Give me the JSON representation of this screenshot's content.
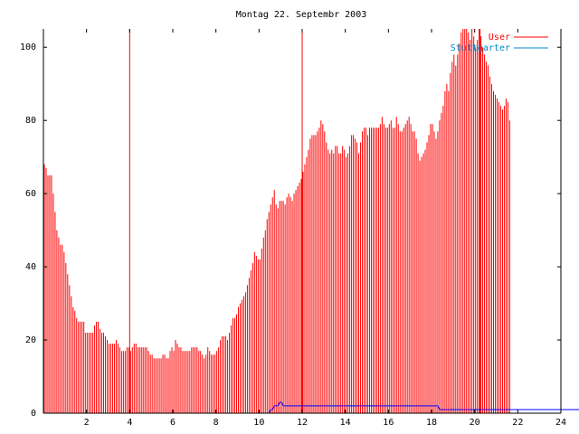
{
  "chart_data": {
    "type": "bar",
    "title": "Montag 22. Septembr 2003",
    "xlabel": "",
    "ylabel": "",
    "xlim": [
      0,
      24
    ],
    "ylim": [
      0,
      105
    ],
    "x_ticks": [
      "2",
      "4",
      "6",
      "8",
      "10",
      "12",
      "14",
      "16",
      "18",
      "20",
      "22",
      "24"
    ],
    "y_ticks": [
      "0",
      "20",
      "40",
      "60",
      "80",
      "100"
    ],
    "grid": false,
    "legend_position": "top-right",
    "sample_interval_hours": 0.08333,
    "colors": {
      "users": "#ff0000",
      "stuttgart": "#0000ff",
      "stuttgart_legend_text": "#0088cc",
      "axis": "#000000"
    },
    "series": [
      {
        "name": "User",
        "color": "#ff0000",
        "values": [
          68,
          67,
          65,
          65,
          65,
          60,
          55,
          50,
          48,
          46,
          46,
          44,
          41,
          38,
          35,
          32,
          29,
          28,
          26,
          25,
          25,
          25,
          25,
          22,
          22,
          22,
          22,
          22,
          24,
          25,
          25,
          23,
          22,
          22,
          21,
          20,
          19,
          19,
          19,
          19,
          20,
          19,
          18,
          17,
          17,
          17,
          18,
          18,
          17,
          18,
          19,
          19,
          18,
          18,
          18,
          18,
          18,
          18,
          17,
          16,
          16,
          15,
          15,
          15,
          15,
          15,
          16,
          16,
          15,
          15,
          17,
          18,
          17,
          20,
          19,
          18,
          18,
          17,
          17,
          17,
          17,
          17,
          18,
          18,
          18,
          18,
          17,
          17,
          16,
          15,
          16,
          18,
          17,
          16,
          16,
          16,
          17,
          18,
          20,
          21,
          21,
          21,
          20,
          22,
          24,
          26,
          26,
          27,
          29,
          30,
          31,
          32,
          33,
          35,
          37,
          39,
          41,
          44,
          43,
          42,
          42,
          45,
          48,
          50,
          53,
          55,
          57,
          59,
          61,
          57,
          56,
          58,
          58,
          58,
          57,
          59,
          60,
          59,
          58,
          60,
          61,
          62,
          63,
          64,
          66,
          68,
          70,
          72,
          75,
          76,
          76,
          76,
          77,
          78,
          80,
          79,
          77,
          74,
          72,
          71,
          72,
          71,
          73,
          73,
          71,
          71,
          73,
          72,
          70,
          71,
          73,
          76,
          76,
          75,
          74,
          71,
          74,
          77,
          78,
          78,
          76,
          78,
          78,
          78,
          78,
          78,
          78,
          79,
          81,
          79,
          78,
          78,
          79,
          80,
          78,
          78,
          81,
          79,
          77,
          77,
          78,
          79,
          80,
          81,
          79,
          77,
          77,
          75,
          71,
          69,
          70,
          71,
          72,
          74,
          76,
          79,
          79,
          77,
          75,
          77,
          80,
          82,
          84,
          88,
          90,
          88,
          93,
          96,
          98,
          95,
          98,
          101,
          104,
          105,
          105,
          105,
          104,
          102,
          106,
          103,
          100,
          102,
          105,
          103,
          100,
          98,
          96,
          95,
          92,
          90,
          88,
          87,
          86,
          85,
          84,
          83,
          84,
          86,
          85,
          80
        ]
      },
      {
        "name": "Stuttgarter",
        "color": "#0000ff",
        "values": [
          0,
          0,
          0,
          0,
          0,
          0,
          0,
          0,
          0,
          0,
          0,
          0,
          0,
          0,
          0,
          0,
          0,
          0,
          0,
          0,
          0,
          0,
          0,
          0,
          0,
          0,
          0,
          0,
          0,
          0,
          0,
          0,
          0,
          0,
          0,
          0,
          0,
          0,
          0,
          0,
          0,
          0,
          0,
          0,
          0,
          0,
          0,
          0,
          0,
          0,
          0,
          0,
          0,
          0,
          0,
          0,
          0,
          0,
          0,
          0,
          0,
          0,
          0,
          0,
          0,
          0,
          0,
          0,
          0,
          0,
          0,
          0,
          0,
          0,
          0,
          0,
          0,
          0,
          0,
          0,
          0,
          0,
          0,
          0,
          0,
          0,
          0,
          0,
          0,
          0,
          0,
          0,
          0,
          0,
          0,
          0,
          0,
          0,
          0,
          0,
          0,
          0,
          0,
          0,
          0,
          0,
          0,
          0,
          0,
          0,
          0,
          0,
          0,
          0,
          0,
          0,
          0,
          0,
          0,
          0,
          0,
          0,
          0,
          0,
          0,
          0,
          1,
          1,
          2,
          2,
          2,
          3,
          3,
          2,
          2,
          2,
          2,
          2,
          2,
          2,
          2,
          2,
          2,
          2,
          2,
          2,
          2,
          2,
          2,
          2,
          2,
          2,
          2,
          2,
          2,
          2,
          2,
          2,
          2,
          2,
          2,
          2,
          2,
          2,
          2,
          2,
          2,
          2,
          2,
          2,
          2,
          2,
          2,
          2,
          2,
          2,
          2,
          2,
          2,
          2,
          2,
          2,
          2,
          2,
          2,
          2,
          2,
          2,
          2,
          2,
          2,
          2,
          2,
          2,
          2,
          2,
          2,
          2,
          2,
          2,
          2,
          2,
          2,
          2,
          2,
          2,
          2,
          2,
          2,
          2,
          2,
          2,
          2,
          2,
          2,
          2,
          2,
          2,
          2,
          2,
          1,
          1,
          1,
          1,
          1,
          1,
          1,
          1,
          1,
          1,
          1,
          1,
          1,
          1,
          1,
          1,
          1,
          1,
          1,
          1,
          1,
          1,
          1,
          1,
          1,
          1,
          1,
          1,
          1,
          1,
          1,
          1,
          1,
          1,
          1,
          1,
          1,
          1,
          1,
          1,
          1,
          1,
          1,
          1,
          1,
          1,
          1,
          1,
          1,
          1,
          1,
          1,
          1,
          1,
          1,
          1,
          1,
          1,
          1,
          1,
          1,
          1,
          1,
          1,
          1,
          1,
          1,
          1,
          1,
          1,
          1,
          1,
          1,
          1,
          1,
          1,
          1,
          1,
          1,
          1,
          1,
          1,
          1
        ]
      }
    ],
    "highlight_bars_x": [
      4,
      12,
      20.25
    ]
  }
}
